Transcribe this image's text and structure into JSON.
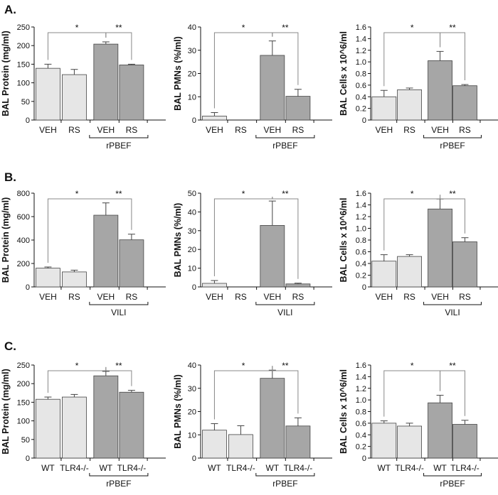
{
  "colors": {
    "light_bar": "#e6e6e6",
    "dark_bar": "#a6a6a6",
    "stroke": "#444444",
    "axis": "#111111"
  },
  "panels": [
    {
      "label": "A.",
      "group_label": "rPBEF"
    },
    {
      "label": "B.",
      "group_label": "VILI"
    },
    {
      "label": "C.",
      "group_label": "rPBEF"
    }
  ],
  "chart_data": [
    {
      "id": "A1",
      "type": "bar",
      "ylabel": "BAL Protein (mg/ml)",
      "ylim": [
        0,
        250
      ],
      "ticks": [
        0,
        50,
        100,
        150,
        200,
        250
      ],
      "tick_labels": [
        "0",
        "50",
        "100",
        "150",
        "200",
        "250"
      ],
      "categories": [
        "VEH",
        "RS",
        "VEH",
        "RS"
      ],
      "values": [
        139,
        122,
        204,
        148
      ],
      "errors": [
        11,
        14,
        6,
        2
      ],
      "group": "rPBEF",
      "significance": [
        {
          "from": 0,
          "to": 2,
          "label": "*"
        },
        {
          "from": 2,
          "to": 3,
          "label": "**"
        }
      ]
    },
    {
      "id": "A2",
      "type": "bar",
      "ylabel": "BAL PMNs (%/ml)",
      "ylim": [
        0,
        40
      ],
      "ticks": [
        0,
        10,
        20,
        30,
        40
      ],
      "tick_labels": [
        "0",
        "10",
        "20",
        "30",
        "40"
      ],
      "categories": [
        "VEH",
        "RS",
        "VEH",
        "RS"
      ],
      "values": [
        1.7,
        0,
        27.8,
        10.2
      ],
      "errors": [
        1.5,
        0,
        6.2,
        3.0
      ],
      "group": "rPBEF",
      "significance": [
        {
          "from": 0,
          "to": 2,
          "label": "*"
        },
        {
          "from": 2,
          "to": 3,
          "label": "**"
        }
      ]
    },
    {
      "id": "A3",
      "type": "bar",
      "ylabel": "BAL Cells x 10^6/ml",
      "ylim": [
        0,
        1.6
      ],
      "ticks": [
        0,
        0.2,
        0.4,
        0.6,
        0.8,
        1.0,
        1.2,
        1.4,
        1.6
      ],
      "tick_labels": [
        "0",
        "0.2",
        "0.4",
        "0.6",
        "0.8",
        "1.0",
        "1.2",
        "1.4",
        "1.6"
      ],
      "categories": [
        "VEH",
        "RS",
        "VEH",
        "RS"
      ],
      "values": [
        0.4,
        0.52,
        1.02,
        0.59
      ],
      "errors": [
        0.11,
        0.03,
        0.16,
        0.02
      ],
      "group": "rPBEF",
      "significance": [
        {
          "from": 0,
          "to": 2,
          "label": "*"
        },
        {
          "from": 2,
          "to": 3,
          "label": "**"
        }
      ]
    },
    {
      "id": "B1",
      "type": "bar",
      "ylabel": "BAL Protein (mg/ml)",
      "ylim": [
        0,
        800
      ],
      "ticks": [
        0,
        200,
        400,
        600,
        800
      ],
      "tick_labels": [
        "0",
        "200",
        "400",
        "600",
        "800"
      ],
      "categories": [
        "VEH",
        "RS",
        "VEH",
        "RS"
      ],
      "values": [
        160,
        128,
        612,
        402
      ],
      "errors": [
        10,
        15,
        105,
        48
      ],
      "group": "VILI",
      "significance": [
        {
          "from": 0,
          "to": 2,
          "label": "*"
        },
        {
          "from": 2,
          "to": 3,
          "label": "**"
        }
      ]
    },
    {
      "id": "B2",
      "type": "bar",
      "ylabel": "BAL PMNs (%/ml)",
      "ylim": [
        0,
        50
      ],
      "ticks": [
        0,
        10,
        20,
        30,
        40,
        50
      ],
      "tick_labels": [
        "0",
        "10",
        "20",
        "30",
        "40",
        "50"
      ],
      "categories": [
        "VEH",
        "RS",
        "VEH",
        "RS"
      ],
      "values": [
        1.9,
        0,
        32.8,
        1.6
      ],
      "errors": [
        1.5,
        0,
        13.0,
        0.4
      ],
      "group": "VILI",
      "significance": [
        {
          "from": 0,
          "to": 2,
          "label": "*"
        },
        {
          "from": 2,
          "to": 3,
          "label": "**"
        }
      ]
    },
    {
      "id": "B3",
      "type": "bar",
      "ylabel": "BAL Cells x 10^6/ml",
      "ylim": [
        0,
        1.6
      ],
      "ticks": [
        0,
        0.2,
        0.4,
        0.6,
        0.8,
        1.0,
        1.2,
        1.4,
        1.6
      ],
      "tick_labels": [
        "0",
        "0.2",
        "0.4",
        "0.6",
        "0.8",
        "1.0",
        "1.2",
        "1.4",
        "1.6"
      ],
      "categories": [
        "VEH",
        "RS",
        "VEH",
        "RS"
      ],
      "values": [
        0.44,
        0.52,
        1.33,
        0.77
      ],
      "errors": [
        0.11,
        0.03,
        0.17,
        0.07
      ],
      "group": "VILI",
      "significance": [
        {
          "from": 0,
          "to": 2,
          "label": "*"
        },
        {
          "from": 2,
          "to": 3,
          "label": "**"
        }
      ]
    },
    {
      "id": "C1",
      "type": "bar",
      "ylabel": "BAL Protein (mg/ml)",
      "ylim": [
        0,
        250
      ],
      "ticks": [
        0,
        50,
        100,
        150,
        200,
        250
      ],
      "tick_labels": [
        "0",
        "50",
        "100",
        "150",
        "200",
        "250"
      ],
      "categories": [
        "WT",
        "TLR4-/-",
        "WT",
        "TLR4-/-"
      ],
      "values": [
        158,
        164,
        221,
        177
      ],
      "errors": [
        6,
        7,
        12,
        5
      ],
      "group": "rPBEF",
      "significance": [
        {
          "from": 0,
          "to": 2,
          "label": "*"
        },
        {
          "from": 2,
          "to": 3,
          "label": "**"
        }
      ]
    },
    {
      "id": "C2",
      "type": "bar",
      "ylabel": "BAL PMNs (%/ml)",
      "ylim": [
        0,
        40
      ],
      "ticks": [
        0,
        10,
        20,
        30,
        40
      ],
      "tick_labels": [
        "0",
        "10",
        "20",
        "30",
        "40"
      ],
      "categories": [
        "WT",
        "TLR4-/-",
        "WT",
        "TLR4-/-"
      ],
      "values": [
        12.0,
        10.1,
        34.3,
        13.8
      ],
      "errors": [
        2.8,
        3.8,
        3.5,
        3.5
      ],
      "group": "rPBEF",
      "significance": [
        {
          "from": 0,
          "to": 2,
          "label": "*"
        },
        {
          "from": 2,
          "to": 3,
          "label": "**"
        }
      ]
    },
    {
      "id": "C3",
      "type": "bar",
      "ylabel": "BAL Cells x 10^6/ml",
      "ylim": [
        0,
        1.6
      ],
      "ticks": [
        0,
        0.2,
        0.4,
        0.6,
        0.8,
        1.0,
        1.2,
        1.4,
        1.6
      ],
      "tick_labels": [
        "0",
        "0.2",
        "0.4",
        "0.6",
        "0.8",
        "1.0",
        "1.2",
        "1.4",
        "1.6"
      ],
      "categories": [
        "WT",
        "TLR4-/-",
        "WT",
        "TLR4-/-"
      ],
      "values": [
        0.6,
        0.55,
        0.95,
        0.58
      ],
      "errors": [
        0.04,
        0.05,
        0.13,
        0.07
      ],
      "group": "rPBEF",
      "significance": [
        {
          "from": 0,
          "to": 2,
          "label": "*"
        },
        {
          "from": 2,
          "to": 3,
          "label": "**"
        }
      ]
    }
  ]
}
